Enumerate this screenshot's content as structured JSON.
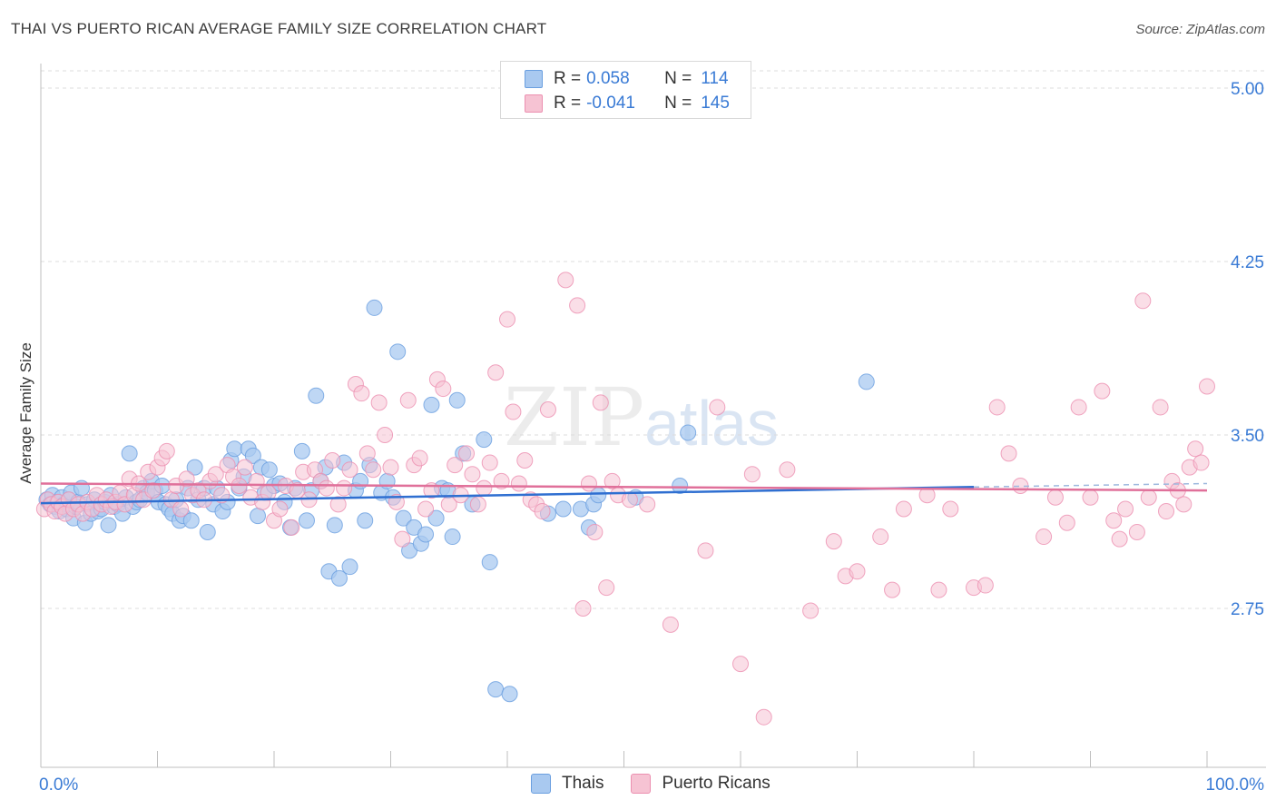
{
  "title": "THAI VS PUERTO RICAN AVERAGE FAMILY SIZE CORRELATION CHART",
  "source": "Source: ZipAtlas.com",
  "watermark": {
    "zip": "ZIP",
    "atlas": "atlas"
  },
  "legend": {
    "rows": [
      {
        "r_label": "R =",
        "r_value": "0.058",
        "n_label": "N =",
        "n_value": "114",
        "color": "#a9c9f0"
      },
      {
        "r_label": "R =",
        "r_value": "-0.041",
        "n_label": "N =",
        "n_value": "145",
        "color": "#f6b8cb"
      }
    ]
  },
  "bottom_legend": [
    {
      "label": "Thais",
      "color": "#a9c9f0",
      "border": "#6a9fe0"
    },
    {
      "label": "Puerto Ricans",
      "color": "#f6c3d3",
      "border": "#ec8fb0"
    }
  ],
  "chart_data": {
    "type": "scatter",
    "title": "THAI VS PUERTO RICAN AVERAGE FAMILY SIZE CORRELATION CHART",
    "xlabel": "",
    "ylabel": "Average Family Size",
    "xlim": [
      0,
      100
    ],
    "ylim": [
      2.0,
      5.1
    ],
    "x_tick_labels": [
      "0.0%",
      "100.0%"
    ],
    "y_ticks": [
      2.75,
      3.5,
      4.25,
      5.0
    ],
    "y_tick_labels": [
      "2.75",
      "3.50",
      "4.25",
      "5.00"
    ],
    "grid": true,
    "legend_position": "top-center",
    "series": [
      {
        "name": "Thais",
        "color": "#6a9fe0",
        "fill": "#a9c9f0",
        "trend": {
          "x": [
            0,
            80
          ],
          "y": [
            3.205,
            3.275
          ],
          "dashed_to": [
            100,
            3.29
          ],
          "color": "#2f6fd1"
        },
        "points": [
          [
            0.5,
            3.22
          ],
          [
            0.8,
            3.2
          ],
          [
            1.0,
            3.24
          ],
          [
            1.2,
            3.19
          ],
          [
            1.4,
            3.21
          ],
          [
            1.6,
            3.17
          ],
          [
            1.8,
            3.23
          ],
          [
            2.0,
            3.2
          ],
          [
            2.2,
            3.18
          ],
          [
            2.4,
            3.22
          ],
          [
            2.6,
            3.25
          ],
          [
            2.8,
            3.14
          ],
          [
            3.0,
            3.19
          ],
          [
            3.2,
            3.21
          ],
          [
            3.5,
            3.27
          ],
          [
            3.8,
            3.12
          ],
          [
            4.0,
            3.2
          ],
          [
            4.3,
            3.16
          ],
          [
            4.6,
            3.22
          ],
          [
            4.9,
            3.17
          ],
          [
            5.2,
            3.18
          ],
          [
            5.5,
            3.21
          ],
          [
            5.8,
            3.11
          ],
          [
            6.0,
            3.24
          ],
          [
            6.3,
            3.19
          ],
          [
            6.6,
            3.2
          ],
          [
            7.0,
            3.16
          ],
          [
            7.3,
            3.23
          ],
          [
            7.6,
            3.42
          ],
          [
            7.9,
            3.19
          ],
          [
            8.2,
            3.21
          ],
          [
            8.5,
            3.22
          ],
          [
            8.8,
            3.27
          ],
          [
            9.1,
            3.25
          ],
          [
            9.5,
            3.3
          ],
          [
            9.8,
            3.26
          ],
          [
            10.1,
            3.21
          ],
          [
            10.4,
            3.28
          ],
          [
            10.7,
            3.2
          ],
          [
            11.0,
            3.18
          ],
          [
            11.3,
            3.16
          ],
          [
            11.6,
            3.22
          ],
          [
            11.9,
            3.13
          ],
          [
            12.2,
            3.15
          ],
          [
            12.6,
            3.27
          ],
          [
            12.9,
            3.13
          ],
          [
            13.2,
            3.36
          ],
          [
            13.5,
            3.22
          ],
          [
            14.0,
            3.27
          ],
          [
            14.3,
            3.08
          ],
          [
            14.8,
            3.2
          ],
          [
            15.1,
            3.27
          ],
          [
            15.6,
            3.17
          ],
          [
            16.0,
            3.21
          ],
          [
            16.3,
            3.39
          ],
          [
            16.6,
            3.44
          ],
          [
            17.0,
            3.27
          ],
          [
            17.4,
            3.32
          ],
          [
            17.8,
            3.44
          ],
          [
            18.2,
            3.41
          ],
          [
            18.6,
            3.15
          ],
          [
            18.9,
            3.36
          ],
          [
            19.2,
            3.25
          ],
          [
            19.6,
            3.35
          ],
          [
            20.0,
            3.28
          ],
          [
            20.5,
            3.29
          ],
          [
            20.9,
            3.21
          ],
          [
            21.4,
            3.1
          ],
          [
            21.8,
            3.27
          ],
          [
            22.4,
            3.43
          ],
          [
            22.8,
            3.13
          ],
          [
            23.2,
            3.26
          ],
          [
            23.6,
            3.67
          ],
          [
            24.0,
            3.3
          ],
          [
            24.4,
            3.36
          ],
          [
            24.7,
            2.91
          ],
          [
            25.2,
            3.11
          ],
          [
            25.6,
            2.88
          ],
          [
            26.0,
            3.38
          ],
          [
            26.5,
            2.93
          ],
          [
            27.0,
            3.26
          ],
          [
            27.4,
            3.3
          ],
          [
            27.8,
            3.13
          ],
          [
            28.2,
            3.37
          ],
          [
            28.6,
            4.05
          ],
          [
            29.2,
            3.25
          ],
          [
            29.7,
            3.3
          ],
          [
            30.2,
            3.23
          ],
          [
            30.6,
            3.86
          ],
          [
            31.1,
            3.14
          ],
          [
            31.6,
            3.0
          ],
          [
            32.0,
            3.1
          ],
          [
            32.6,
            3.03
          ],
          [
            33.0,
            3.07
          ],
          [
            33.5,
            3.63
          ],
          [
            33.9,
            3.14
          ],
          [
            34.4,
            3.27
          ],
          [
            34.9,
            3.26
          ],
          [
            35.3,
            3.06
          ],
          [
            35.7,
            3.65
          ],
          [
            36.2,
            3.42
          ],
          [
            37.0,
            3.2
          ],
          [
            38.0,
            3.48
          ],
          [
            38.5,
            2.95
          ],
          [
            39.0,
            2.4
          ],
          [
            40.2,
            2.38
          ],
          [
            43.5,
            3.16
          ],
          [
            44.8,
            3.18
          ],
          [
            46.3,
            3.18
          ],
          [
            47.0,
            3.1
          ],
          [
            47.4,
            3.2
          ],
          [
            47.8,
            3.24
          ],
          [
            51.0,
            3.23
          ],
          [
            54.8,
            3.28
          ],
          [
            55.5,
            3.51
          ],
          [
            70.8,
            3.73
          ]
        ]
      },
      {
        "name": "Puerto Ricans",
        "color": "#ec8fb0",
        "fill": "#f6c3d3",
        "trend": {
          "x": [
            0,
            100
          ],
          "y": [
            3.29,
            3.26
          ],
          "color": "#e0709a"
        },
        "points": [
          [
            0.3,
            3.18
          ],
          [
            0.6,
            3.22
          ],
          [
            0.9,
            3.2
          ],
          [
            1.2,
            3.17
          ],
          [
            1.5,
            3.21
          ],
          [
            1.8,
            3.19
          ],
          [
            2.1,
            3.16
          ],
          [
            2.4,
            3.22
          ],
          [
            2.8,
            3.18
          ],
          [
            3.2,
            3.2
          ],
          [
            3.6,
            3.16
          ],
          [
            4.0,
            3.21
          ],
          [
            4.4,
            3.18
          ],
          [
            4.8,
            3.24
          ],
          [
            5.2,
            3.2
          ],
          [
            5.6,
            3.22
          ],
          [
            6.0,
            3.19
          ],
          [
            6.4,
            3.21
          ],
          [
            6.8,
            3.25
          ],
          [
            7.2,
            3.2
          ],
          [
            7.6,
            3.31
          ],
          [
            8.0,
            3.24
          ],
          [
            8.4,
            3.29
          ],
          [
            8.8,
            3.22
          ],
          [
            9.2,
            3.34
          ],
          [
            9.6,
            3.26
          ],
          [
            10.0,
            3.36
          ],
          [
            10.4,
            3.4
          ],
          [
            10.8,
            3.43
          ],
          [
            11.2,
            3.22
          ],
          [
            11.6,
            3.28
          ],
          [
            12.0,
            3.18
          ],
          [
            12.5,
            3.31
          ],
          [
            13.0,
            3.24
          ],
          [
            13.5,
            3.26
          ],
          [
            14.0,
            3.22
          ],
          [
            14.5,
            3.3
          ],
          [
            15.0,
            3.33
          ],
          [
            15.5,
            3.24
          ],
          [
            16.0,
            3.37
          ],
          [
            16.5,
            3.32
          ],
          [
            17.0,
            3.28
          ],
          [
            17.5,
            3.36
          ],
          [
            18.0,
            3.23
          ],
          [
            18.5,
            3.3
          ],
          [
            19.0,
            3.21
          ],
          [
            19.5,
            3.25
          ],
          [
            20.0,
            3.13
          ],
          [
            20.5,
            3.18
          ],
          [
            21.0,
            3.28
          ],
          [
            21.5,
            3.1
          ],
          [
            22.0,
            3.26
          ],
          [
            22.5,
            3.34
          ],
          [
            23.0,
            3.22
          ],
          [
            23.5,
            3.35
          ],
          [
            24.0,
            3.3
          ],
          [
            24.5,
            3.27
          ],
          [
            25.0,
            3.39
          ],
          [
            25.5,
            3.2
          ],
          [
            26.0,
            3.27
          ],
          [
            26.5,
            3.35
          ],
          [
            27.0,
            3.72
          ],
          [
            27.5,
            3.68
          ],
          [
            28.0,
            3.42
          ],
          [
            28.5,
            3.35
          ],
          [
            29.0,
            3.64
          ],
          [
            29.5,
            3.5
          ],
          [
            30.0,
            3.36
          ],
          [
            30.5,
            3.21
          ],
          [
            31.0,
            3.05
          ],
          [
            31.5,
            3.65
          ],
          [
            32.0,
            3.37
          ],
          [
            32.5,
            3.4
          ],
          [
            33.0,
            3.18
          ],
          [
            33.5,
            3.26
          ],
          [
            34.0,
            3.74
          ],
          [
            34.5,
            3.7
          ],
          [
            35.0,
            3.2
          ],
          [
            35.5,
            3.37
          ],
          [
            36.0,
            3.24
          ],
          [
            36.5,
            3.42
          ],
          [
            37.0,
            3.33
          ],
          [
            37.5,
            3.2
          ],
          [
            38.0,
            3.27
          ],
          [
            38.5,
            3.38
          ],
          [
            39.0,
            3.77
          ],
          [
            39.5,
            3.3
          ],
          [
            40.0,
            4.0
          ],
          [
            40.5,
            3.6
          ],
          [
            41.0,
            3.29
          ],
          [
            41.5,
            3.39
          ],
          [
            42.0,
            3.22
          ],
          [
            42.5,
            3.2
          ],
          [
            43.0,
            3.17
          ],
          [
            43.5,
            3.61
          ],
          [
            45.0,
            4.17
          ],
          [
            46.0,
            4.06
          ],
          [
            46.5,
            2.75
          ],
          [
            47.0,
            3.29
          ],
          [
            47.5,
            3.08
          ],
          [
            48.0,
            3.64
          ],
          [
            48.5,
            2.84
          ],
          [
            49.0,
            3.3
          ],
          [
            49.5,
            3.24
          ],
          [
            50.5,
            3.22
          ],
          [
            52.0,
            3.2
          ],
          [
            54.0,
            2.68
          ],
          [
            57.0,
            3.0
          ],
          [
            58.0,
            3.62
          ],
          [
            60.0,
            2.51
          ],
          [
            61.0,
            3.33
          ],
          [
            62.0,
            2.28
          ],
          [
            64.0,
            3.35
          ],
          [
            66.0,
            2.74
          ],
          [
            68.0,
            3.04
          ],
          [
            69.0,
            2.89
          ],
          [
            70.0,
            2.91
          ],
          [
            72.0,
            3.06
          ],
          [
            73.0,
            2.83
          ],
          [
            74.0,
            3.18
          ],
          [
            76.0,
            3.24
          ],
          [
            77.0,
            2.83
          ],
          [
            78.0,
            3.18
          ],
          [
            80.0,
            2.84
          ],
          [
            81.0,
            2.85
          ],
          [
            82.0,
            3.62
          ],
          [
            83.0,
            3.42
          ],
          [
            84.0,
            3.28
          ],
          [
            86.0,
            3.06
          ],
          [
            87.0,
            3.23
          ],
          [
            88.0,
            3.12
          ],
          [
            89.0,
            3.62
          ],
          [
            90.0,
            3.23
          ],
          [
            91.0,
            3.69
          ],
          [
            92.0,
            3.13
          ],
          [
            92.5,
            3.05
          ],
          [
            93.0,
            3.18
          ],
          [
            94.0,
            3.08
          ],
          [
            94.5,
            4.08
          ],
          [
            95.0,
            3.23
          ],
          [
            96.0,
            3.62
          ],
          [
            96.5,
            3.17
          ],
          [
            97.0,
            3.3
          ],
          [
            97.5,
            3.26
          ],
          [
            98.0,
            3.2
          ],
          [
            98.5,
            3.36
          ],
          [
            99.0,
            3.44
          ],
          [
            99.5,
            3.38
          ],
          [
            100.0,
            3.71
          ]
        ]
      }
    ]
  }
}
